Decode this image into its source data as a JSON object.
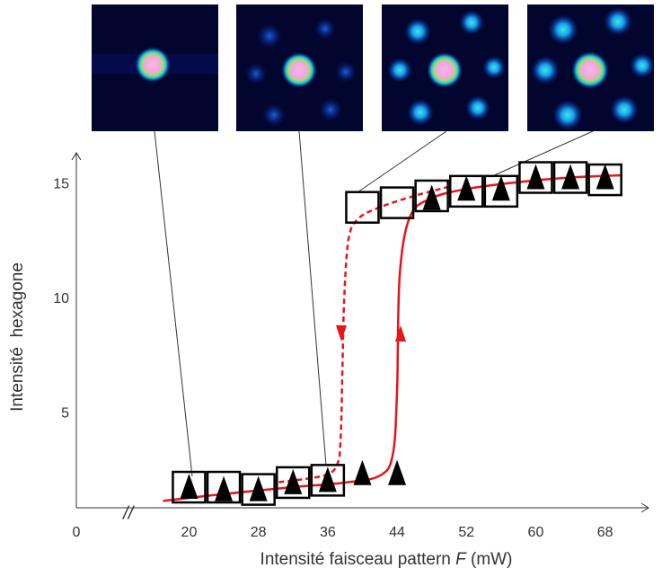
{
  "chart_data": {
    "type": "scatter",
    "xlabel": "Intensité faisceau pattern",
    "xlabel_var": "F",
    "xlabel_unit": "(mW)",
    "ylabel": "Intensité  hexagone",
    "axis_break_label": "//",
    "xlim": [
      0,
      73
    ],
    "x_break": [
      0,
      7
    ],
    "ylim": [
      0.9,
      16.3
    ],
    "xticks": [
      0,
      20,
      28,
      36,
      44,
      52,
      60,
      68
    ],
    "yticks": [
      5,
      10,
      15
    ],
    "series": [
      {
        "marker": "square",
        "color": "#000000",
        "x": [
          20,
          24,
          28,
          32,
          36,
          40,
          44,
          48,
          52,
          56,
          60,
          64,
          68
        ],
        "values": [
          1.8,
          1.8,
          1.7,
          2.0,
          2.1,
          14.0,
          14.2,
          14.5,
          14.7,
          14.7,
          15.3,
          15.3,
          15.2
        ]
      },
      {
        "marker": "triangle",
        "color": "#000000",
        "x": [
          20,
          24,
          28,
          32,
          36,
          40,
          44,
          48,
          52,
          56,
          60,
          64,
          68
        ],
        "values": [
          1.8,
          1.7,
          1.7,
          2.0,
          2.1,
          2.4,
          2.4,
          14.4,
          14.8,
          14.8,
          15.3,
          15.3,
          15.3
        ]
      },
      {
        "line": "solid",
        "color": "#e8141a",
        "x": [
          17,
          24,
          32,
          38,
          42,
          43.5,
          44,
          44.3,
          45.5,
          48,
          52,
          58,
          64,
          70
        ],
        "values": [
          1.2,
          1.5,
          1.8,
          2.0,
          2.3,
          3.2,
          6,
          11,
          13.6,
          14.4,
          14.8,
          15.1,
          15.3,
          15.4
        ]
      },
      {
        "line": "dashed",
        "color": "#e8141a",
        "x": [
          50,
          46,
          42,
          39.5,
          38.4,
          37.9,
          37.7,
          37.5,
          37.1,
          35.5,
          30
        ],
        "values": [
          14.9,
          14.5,
          14.0,
          13.5,
          12.6,
          10,
          7,
          4,
          2.8,
          2.3,
          2.0
        ]
      }
    ]
  }
}
